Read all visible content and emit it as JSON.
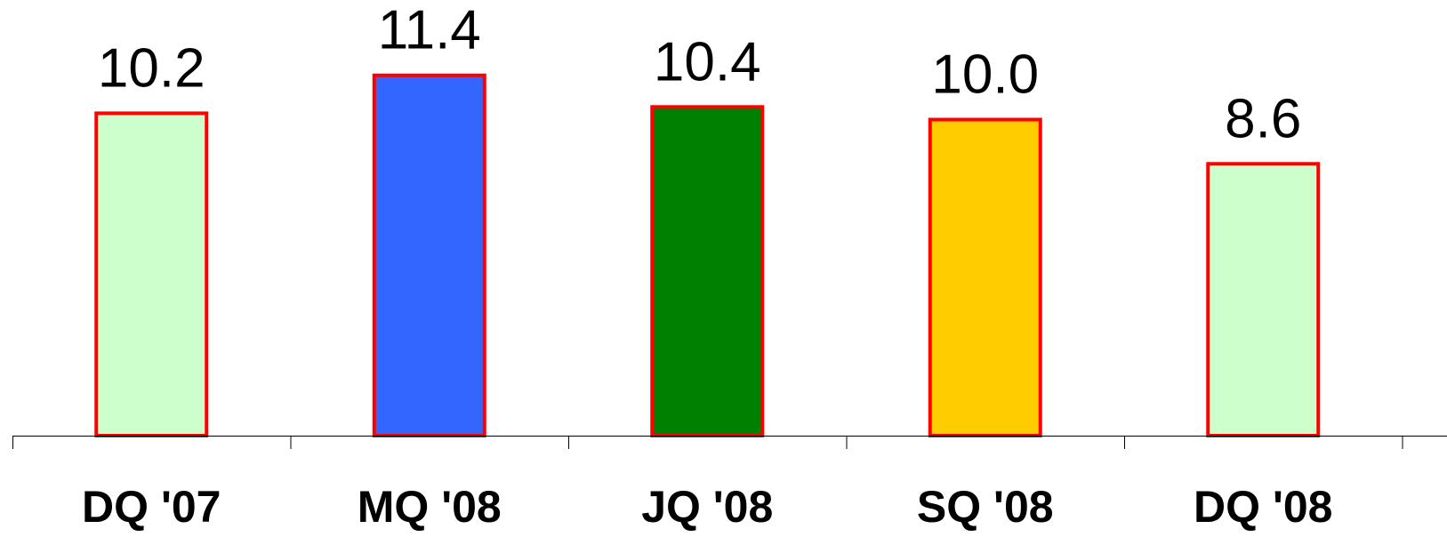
{
  "chart_data": {
    "type": "bar",
    "categories": [
      "DQ '07",
      "MQ '08",
      "JQ '08",
      "SQ '08",
      "DQ '08"
    ],
    "values": [
      10.2,
      11.4,
      10.4,
      10.0,
      8.6
    ],
    "data_labels": [
      "10.2",
      "11.4",
      "10.4",
      "10.0",
      "8.6"
    ],
    "bar_colors": [
      "#ccffcc",
      "#3366ff",
      "#008000",
      "#ffcc00",
      "#ccffcc"
    ],
    "bar_border_color": "#ff0000",
    "axis_color": "#000000",
    "title": "",
    "xlabel": "",
    "ylabel": "",
    "ylim": [
      0,
      13.5
    ],
    "grid": false,
    "legend": "none"
  }
}
